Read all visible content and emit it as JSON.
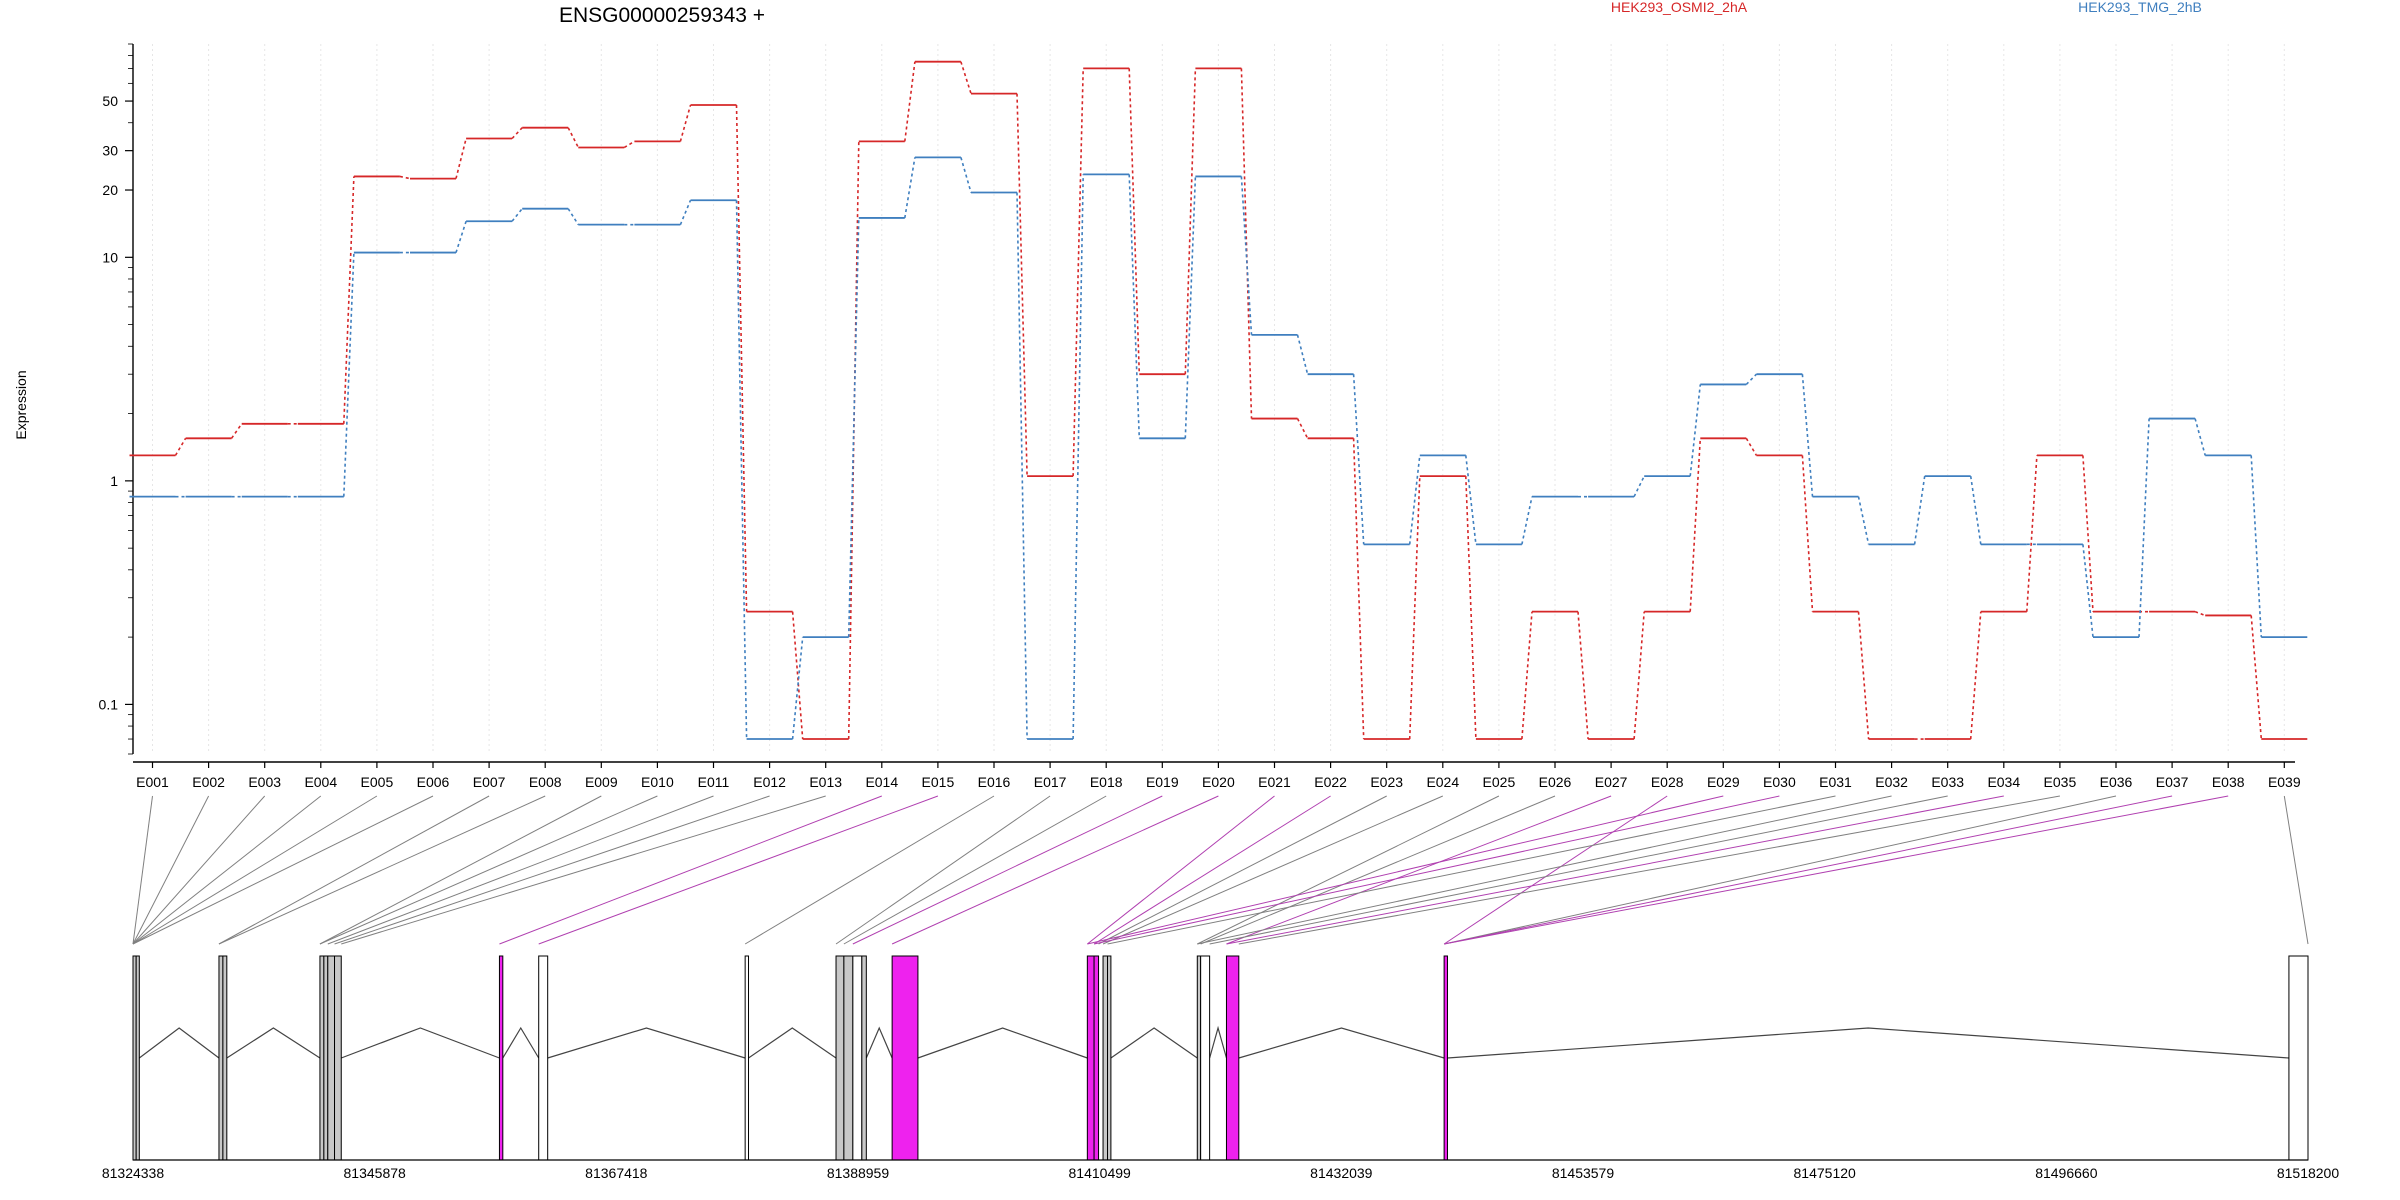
{
  "chart_data": {
    "type": "line",
    "title": "ENSG00000259343 +",
    "ylabel": "Expression",
    "yscale": "log",
    "ylim": [
      0.06,
      90
    ],
    "yticks": [
      0.1,
      1,
      10,
      20,
      30,
      50
    ],
    "ytick_labels": [
      "0.1",
      "1",
      "10",
      "20",
      "30",
      "50"
    ],
    "grid": "vertical",
    "legend_placement": "top",
    "categories": [
      "E001",
      "E002",
      "E003",
      "E004",
      "E005",
      "E006",
      "E007",
      "E008",
      "E009",
      "E010",
      "E011",
      "E012",
      "E013",
      "E014",
      "E015",
      "E016",
      "E017",
      "E018",
      "E019",
      "E020",
      "E021",
      "E022",
      "E023",
      "E024",
      "E025",
      "E026",
      "E027",
      "E028",
      "E029",
      "E030",
      "E031",
      "E032",
      "E033",
      "E034",
      "E035",
      "E036",
      "E037",
      "E038",
      "E039"
    ],
    "series": [
      {
        "name": "HEK293_OSMI2_2hA",
        "color": "#d62728",
        "values": [
          1.3,
          1.55,
          1.8,
          1.8,
          23,
          22.5,
          34,
          38,
          31,
          33,
          48,
          0.26,
          0.07,
          33,
          75,
          54,
          1.05,
          70,
          3,
          70,
          1.9,
          1.55,
          0.07,
          1.05,
          0.07,
          0.26,
          0.07,
          0.26,
          1.55,
          1.3,
          0.26,
          0.07,
          0.07,
          0.26,
          1.3,
          0.26,
          0.26,
          0.25,
          0.07
        ]
      },
      {
        "name": "HEK293_TMG_2hB",
        "color": "#3f7fbf",
        "values": [
          0.85,
          0.85,
          0.85,
          0.85,
          10.5,
          10.5,
          14.5,
          16.5,
          14,
          14,
          18,
          0.07,
          0.2,
          15,
          28,
          19.5,
          0.07,
          23.5,
          1.55,
          23,
          4.5,
          3,
          0.52,
          1.3,
          0.52,
          0.85,
          0.85,
          1.05,
          2.7,
          3,
          0.85,
          0.52,
          1.05,
          0.52,
          0.52,
          0.2,
          1.9,
          1.3,
          0.2
        ]
      }
    ],
    "gene_model": {
      "coord_ticks": [
        "81324338",
        "81345878",
        "81367418",
        "81388959",
        "81410499",
        "81432039",
        "81453579",
        "81475120",
        "81496660",
        "81518200"
      ],
      "coord_range": [
        81324338,
        81518200
      ],
      "exons": [
        {
          "start": 81324338,
          "end": 81324620,
          "fill": "#c8c8c8",
          "exon_label": "E001"
        },
        {
          "start": 81324620,
          "end": 81324900,
          "fill": "#c8c8c8",
          "exon_label": "E002"
        },
        {
          "start": 81332000,
          "end": 81332350,
          "fill": "#c8c8c8",
          "exon_label": "E005"
        },
        {
          "start": 81332350,
          "end": 81332700,
          "fill": "#c8c8c8",
          "exon_label": "E006"
        },
        {
          "start": 81341000,
          "end": 81341350,
          "fill": "#c8c8c8",
          "exon_label": "E008"
        },
        {
          "start": 81341350,
          "end": 81341700,
          "fill": "#c8c8c8",
          "exon_label": "E009"
        },
        {
          "start": 81341700,
          "end": 81342300,
          "fill": "#c8c8c8",
          "exon_label": "E010"
        },
        {
          "start": 81342300,
          "end": 81342900,
          "fill": "#c8c8c8",
          "exon_label": "E011"
        },
        {
          "start": 81357000,
          "end": 81357300,
          "fill": "#ee22ee",
          "exon_label": "E012"
        },
        {
          "start": 81360500,
          "end": 81361300,
          "fill": "#ffffff",
          "exon_label": "E013"
        },
        {
          "start": 81378900,
          "end": 81379200,
          "fill": "#ffffff",
          "exon_label": "E014"
        },
        {
          "start": 81387000,
          "end": 81387700,
          "fill": "#c8c8c8",
          "exon_label": "E015"
        },
        {
          "start": 81387700,
          "end": 81388500,
          "fill": "#c8c8c8",
          "exon_label": "E016"
        },
        {
          "start": 81388500,
          "end": 81389300,
          "fill": "#ffffff",
          "exon_label": "E017"
        },
        {
          "start": 81389300,
          "end": 81389700,
          "fill": "#c8c8c8",
          "exon_label": "E018"
        },
        {
          "start": 81392000,
          "end": 81394300,
          "fill": "#ee22ee",
          "exon_label": "E019"
        },
        {
          "start": 81409400,
          "end": 81410000,
          "fill": "#ee22ee",
          "exon_label": "E020"
        },
        {
          "start": 81410000,
          "end": 81410400,
          "fill": "#ee22ee",
          "exon_label": "E021"
        },
        {
          "start": 81410800,
          "end": 81411200,
          "fill": "#c8c8c8",
          "exon_label": "E022"
        },
        {
          "start": 81411200,
          "end": 81411500,
          "fill": "#c8c8c8",
          "exon_label": "E023"
        },
        {
          "start": 81419200,
          "end": 81419500,
          "fill": "#c8c8c8",
          "exon_label": "E027"
        },
        {
          "start": 81419500,
          "end": 81420300,
          "fill": "#ffffff",
          "exon_label": "E028"
        },
        {
          "start": 81421800,
          "end": 81422900,
          "fill": "#ee22ee",
          "exon_label": "E029"
        },
        {
          "start": 81441200,
          "end": 81441500,
          "fill": "#ee22ee",
          "exon_label": "E038"
        },
        {
          "start": 81516500,
          "end": 81518200,
          "fill": "#ffffff",
          "exon_label": "E039"
        }
      ],
      "connectors": [
        {
          "exon": "E001",
          "to": 81324338,
          "color": "#808080"
        },
        {
          "exon": "E002",
          "to": 81324338,
          "color": "#808080"
        },
        {
          "exon": "E003",
          "to": 81324338,
          "color": "#808080"
        },
        {
          "exon": "E004",
          "to": 81324338,
          "color": "#808080"
        },
        {
          "exon": "E005",
          "to": 81324338,
          "color": "#808080"
        },
        {
          "exon": "E006",
          "to": 81324338,
          "color": "#808080"
        },
        {
          "exon": "E007",
          "to": 81332000,
          "color": "#808080"
        },
        {
          "exon": "E008",
          "to": 81332000,
          "color": "#808080"
        },
        {
          "exon": "E009",
          "to": 81341000,
          "color": "#808080"
        },
        {
          "exon": "E010",
          "to": 81341000,
          "color": "#808080"
        },
        {
          "exon": "E011",
          "to": 81341700,
          "color": "#808080"
        },
        {
          "exon": "E012",
          "to": 81342300,
          "color": "#808080"
        },
        {
          "exon": "E013",
          "to": 81342900,
          "color": "#808080"
        },
        {
          "exon": "E014",
          "to": 81357000,
          "color": "#b040b0"
        },
        {
          "exon": "E015",
          "to": 81360500,
          "color": "#b040b0"
        },
        {
          "exon": "E016",
          "to": 81378900,
          "color": "#808080"
        },
        {
          "exon": "E017",
          "to": 81387000,
          "color": "#808080"
        },
        {
          "exon": "E018",
          "to": 81387700,
          "color": "#808080"
        },
        {
          "exon": "E019",
          "to": 81388500,
          "color": "#b040b0"
        },
        {
          "exon": "E020",
          "to": 81392000,
          "color": "#b040b0"
        },
        {
          "exon": "E021",
          "to": 81409400,
          "color": "#b040b0"
        },
        {
          "exon": "E022",
          "to": 81410000,
          "color": "#b040b0"
        },
        {
          "exon": "E023",
          "to": 81410400,
          "color": "#808080"
        },
        {
          "exon": "E024",
          "to": 81410800,
          "color": "#808080"
        },
        {
          "exon": "E025",
          "to": 81419200,
          "color": "#808080"
        },
        {
          "exon": "E026",
          "to": 81419500,
          "color": "#808080"
        },
        {
          "exon": "E027",
          "to": 81421800,
          "color": "#b040b0"
        },
        {
          "exon": "E028",
          "to": 81441200,
          "color": "#b040b0"
        },
        {
          "exon": "E029",
          "to": 81409400,
          "color": "#b040b0"
        },
        {
          "exon": "E030",
          "to": 81410000,
          "color": "#b040b0"
        },
        {
          "exon": "E031",
          "to": 81411200,
          "color": "#808080"
        },
        {
          "exon": "E032",
          "to": 81419200,
          "color": "#808080"
        },
        {
          "exon": "E033",
          "to": 81420300,
          "color": "#808080"
        },
        {
          "exon": "E034",
          "to": 81421800,
          "color": "#b040b0"
        },
        {
          "exon": "E035",
          "to": 81422900,
          "color": "#808080"
        },
        {
          "exon": "E036",
          "to": 81441200,
          "color": "#808080"
        },
        {
          "exon": "E037",
          "to": 81441200,
          "color": "#b040b0"
        },
        {
          "exon": "E038",
          "to": 81441200,
          "color": "#b040b0"
        },
        {
          "exon": "E039",
          "to": 81518200,
          "color": "#808080"
        }
      ]
    }
  }
}
